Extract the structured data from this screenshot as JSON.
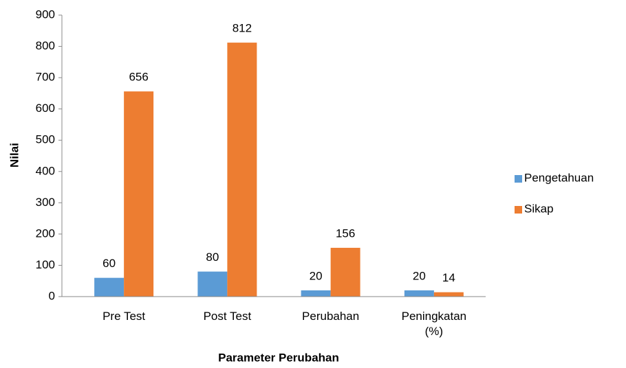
{
  "chart_data": {
    "type": "bar",
    "categories": [
      "Pre Test",
      "Post Test",
      "Perubahan",
      "Peningkatan (%)"
    ],
    "series": [
      {
        "name": "Pengetahuan",
        "color": "#5b9bd5",
        "values": [
          60,
          80,
          20,
          20
        ]
      },
      {
        "name": "Sikap",
        "color": "#ed7d31",
        "values": [
          656,
          812,
          156,
          14
        ]
      }
    ],
    "xlabel": "Parameter Perubahan",
    "ylabel": "Nilai",
    "ylim": [
      0,
      900
    ],
    "yticks": [
      0,
      100,
      200,
      300,
      400,
      500,
      600,
      700,
      800,
      900
    ],
    "legend": "right"
  }
}
